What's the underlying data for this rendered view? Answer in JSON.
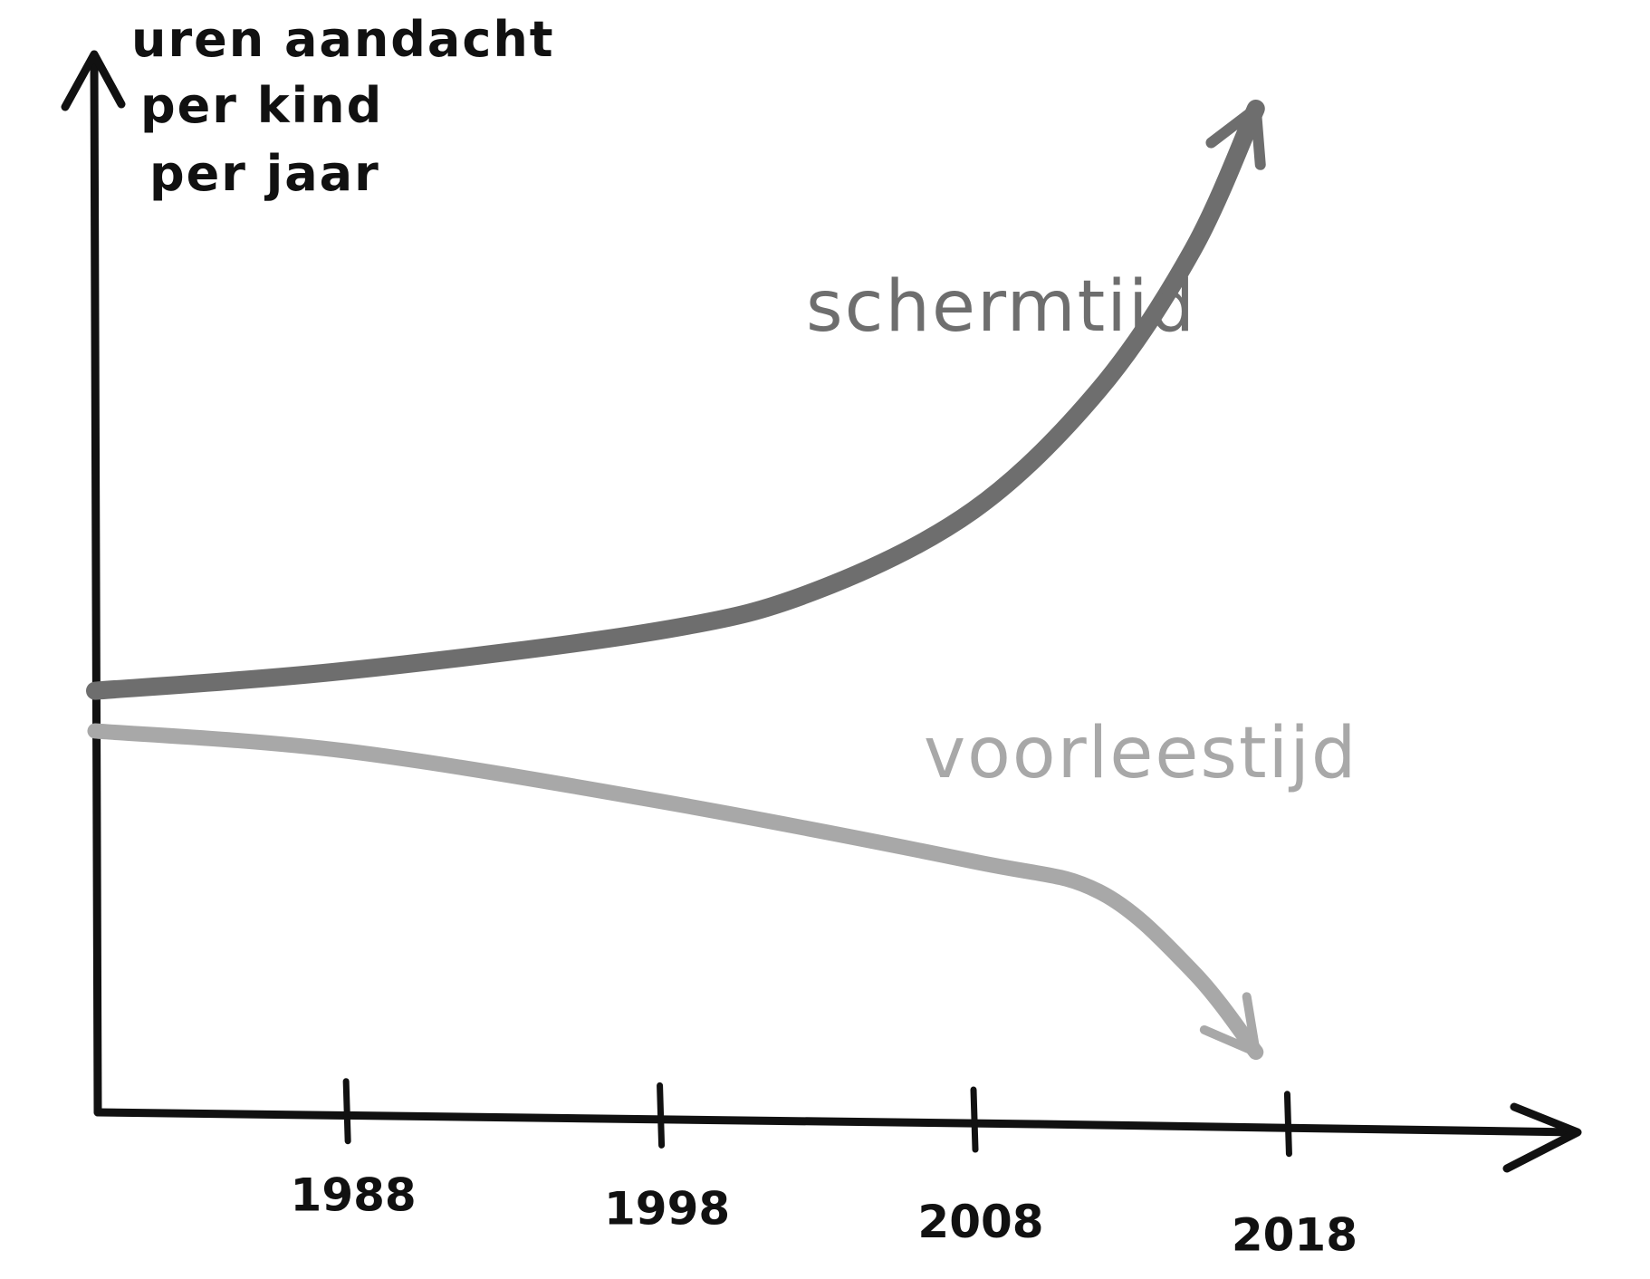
{
  "chart_data": {
    "type": "line",
    "title": "",
    "ylabel_lines": [
      "uren aandacht",
      "per kind",
      "per jaar"
    ],
    "xlabel": "",
    "x_ticks": [
      "1988",
      "1998",
      "2008",
      "2018"
    ],
    "xlim": [
      1980,
      2022
    ],
    "ylim": [
      0,
      100
    ],
    "grid": false,
    "legend": "inline labels",
    "series": [
      {
        "name": "schermtijd",
        "color": "#6e6e6e",
        "points": [
          [
            1980,
            42
          ],
          [
            1988,
            44
          ],
          [
            1998,
            48
          ],
          [
            2003,
            52
          ],
          [
            2008,
            60
          ],
          [
            2012,
            72
          ],
          [
            2015,
            86
          ],
          [
            2017,
            100
          ]
        ]
      },
      {
        "name": "voorleestijd",
        "color": "#a8a8a8",
        "points": [
          [
            1980,
            38
          ],
          [
            1988,
            36
          ],
          [
            1998,
            31
          ],
          [
            2008,
            25
          ],
          [
            2012,
            22
          ],
          [
            2015,
            14
          ],
          [
            2017,
            6
          ]
        ]
      }
    ]
  }
}
